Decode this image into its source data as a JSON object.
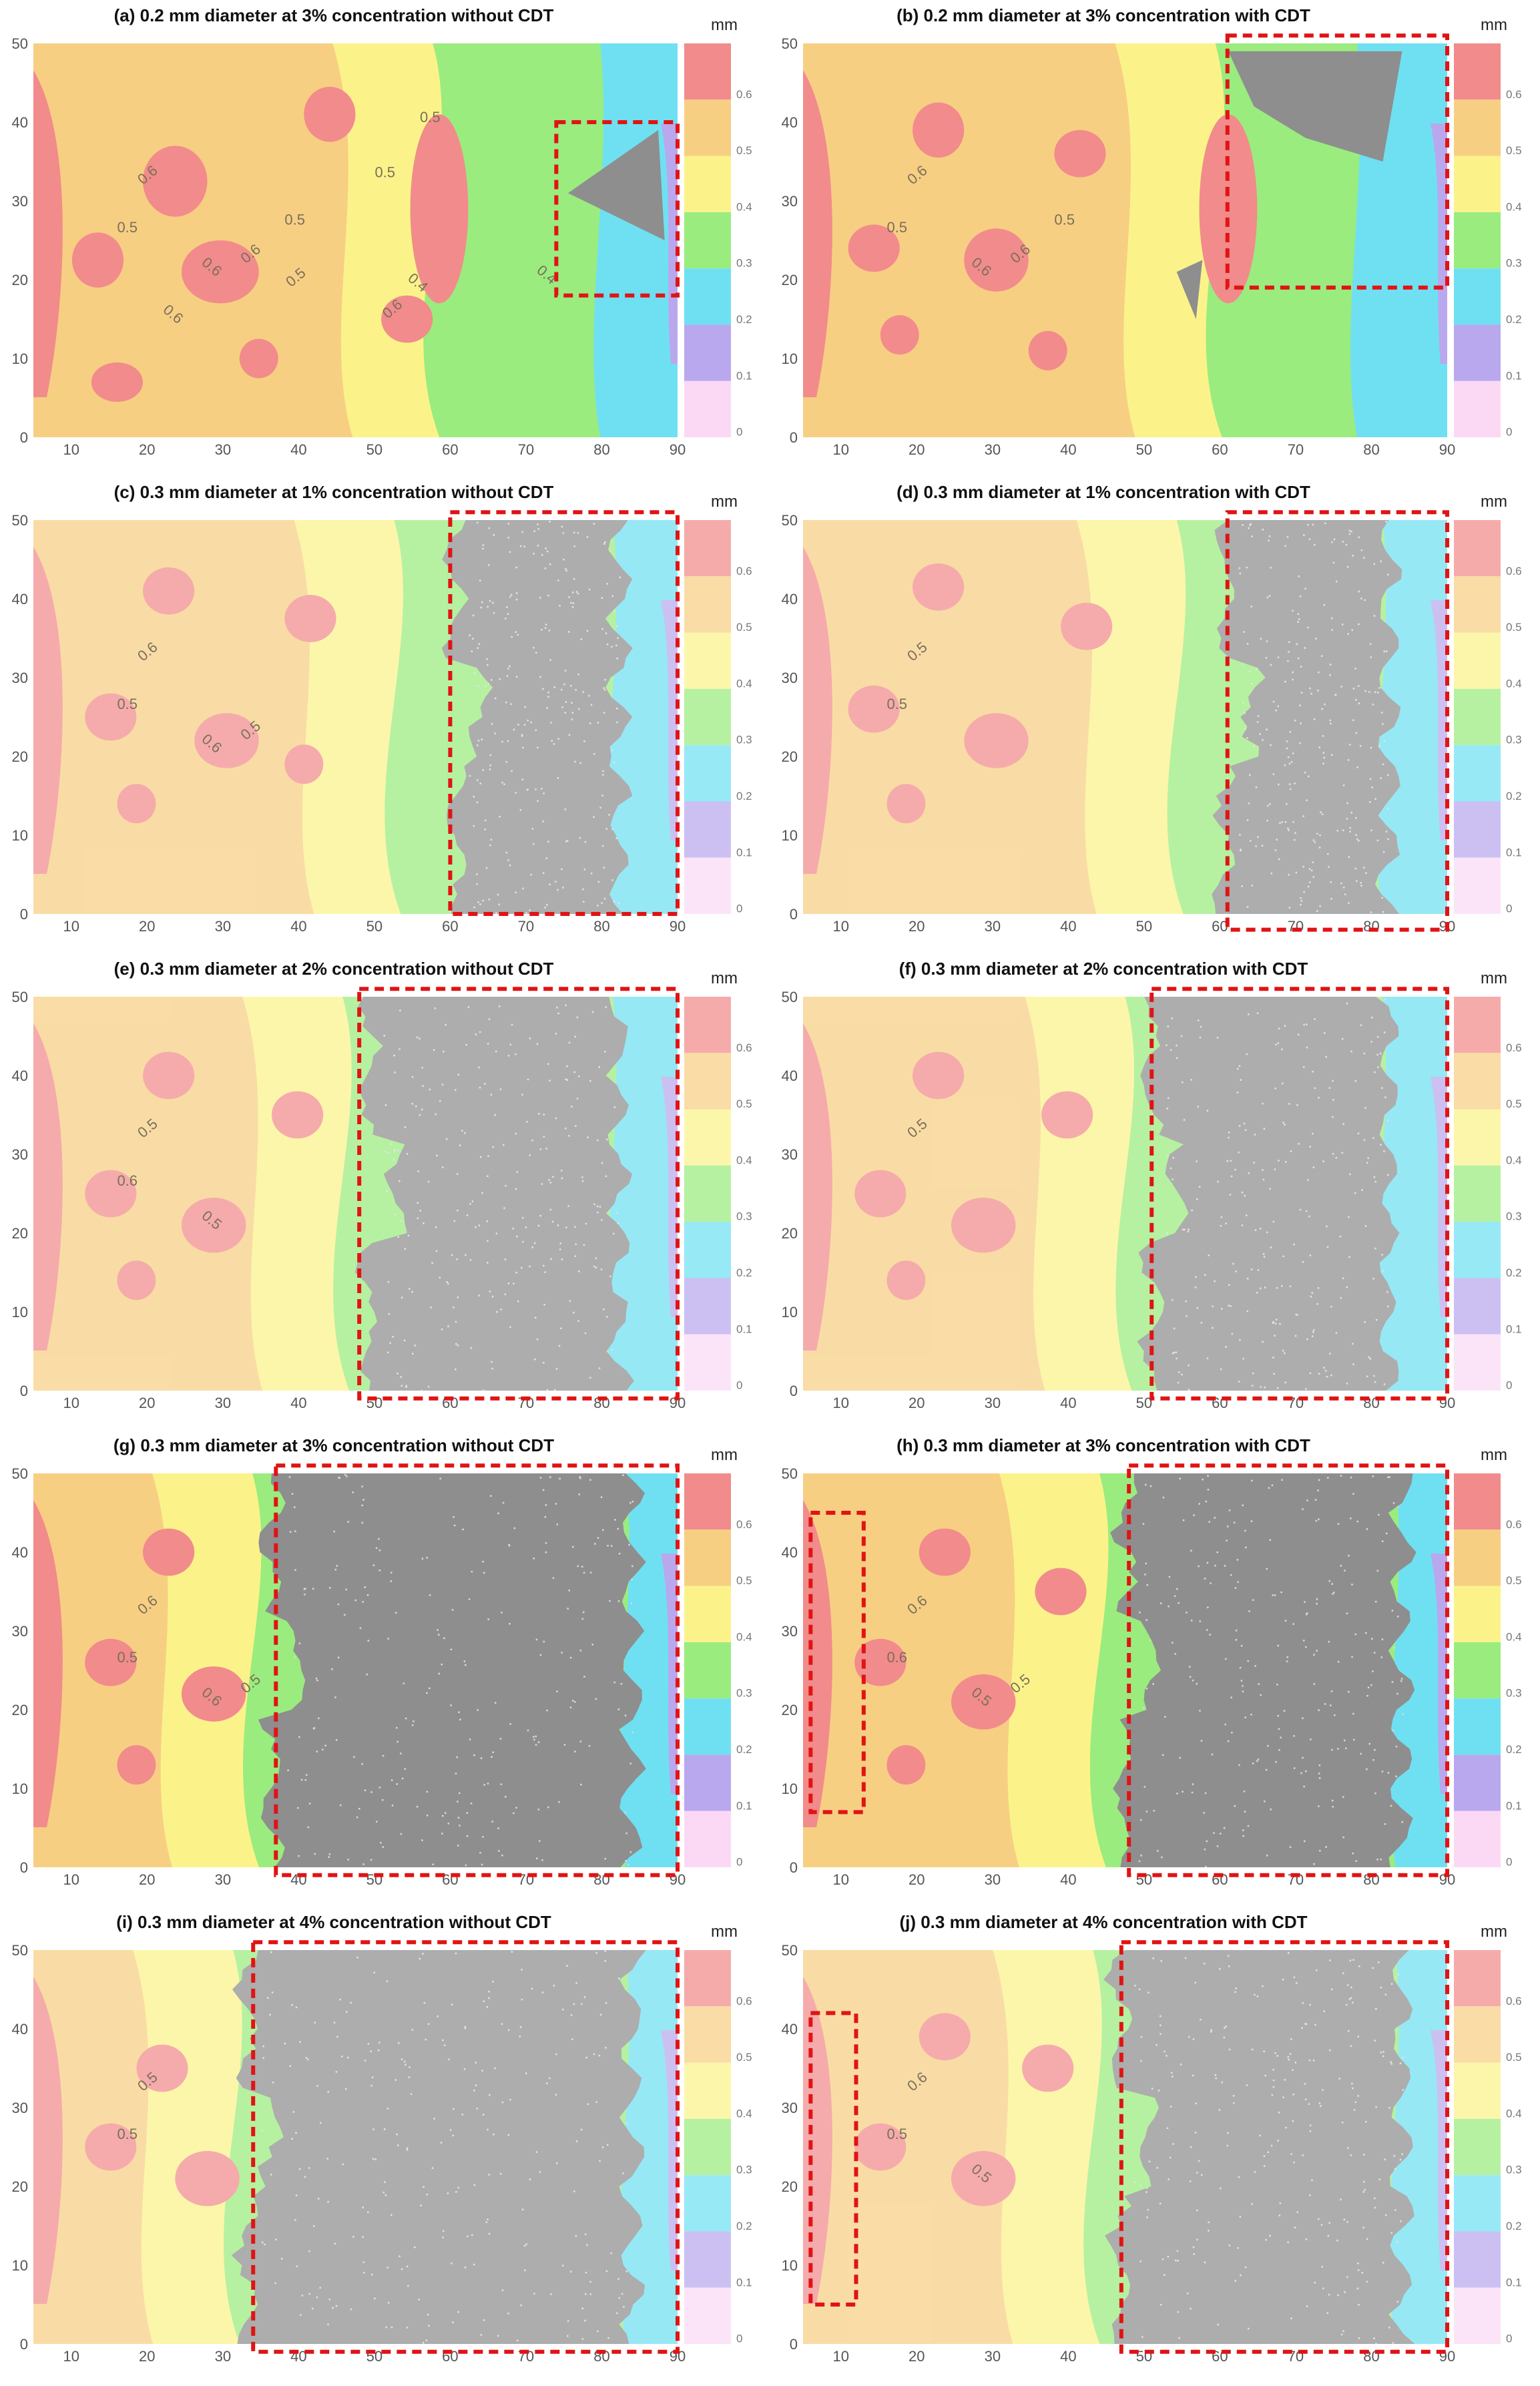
{
  "figure": {
    "unit_label": "mm",
    "legend_ticks": [
      "0.6",
      "0.5",
      "0.4",
      "0.3",
      "0.2",
      "0.1",
      "0"
    ],
    "legend_colors": [
      "#f28b8b",
      "#f7cf83",
      "#fbf38a",
      "#9aec7e",
      "#6fe0f2",
      "#b9a8ee",
      "#fbd9f5"
    ],
    "surface_colors": {
      "high": "#f28b8b",
      "mid_high": "#f7cf83",
      "mid": "#fbf38a",
      "low_mid": "#9aec7e",
      "low": "#6fe0f2",
      "very_low": "#b9a8ee",
      "damage": "#8e8e8e",
      "highlight_box": "#e01414"
    }
  },
  "chart_data": [
    {
      "type": "heatmap",
      "panel": "a",
      "title": "(a) 0.2 mm diameter at 3% concentration without CDT",
      "xticks": [
        10,
        20,
        30,
        40,
        50,
        60,
        70,
        80,
        90
      ],
      "yticks": [
        0,
        10,
        20,
        30,
        40,
        50
      ],
      "xlim": [
        5,
        90
      ],
      "ylim": [
        0,
        50
      ],
      "colorbar_label": "mm",
      "colorbar_range": [
        0,
        0.7
      ],
      "contour_labels": [
        "0.6",
        "0.5",
        "0.6",
        "0.6",
        "0.5",
        "0.6",
        "0.6",
        "0.5",
        "0.4",
        "0.5",
        "0.5",
        "0.4"
      ],
      "highlight_regions": [
        {
          "x": [
            74,
            90
          ],
          "y": [
            18,
            40
          ]
        }
      ]
    },
    {
      "type": "heatmap",
      "panel": "b",
      "title": "(b) 0.2 mm diameter at 3% concentration with CDT",
      "xticks": [
        10,
        20,
        30,
        40,
        50,
        60,
        70,
        80,
        90
      ],
      "yticks": [
        0,
        10,
        20,
        30,
        40,
        50
      ],
      "xlim": [
        5,
        90
      ],
      "ylim": [
        0,
        50
      ],
      "colorbar_label": "mm",
      "colorbar_range": [
        0,
        0.7
      ],
      "contour_labels": [
        "0.6",
        "0.5",
        "0.6",
        "0.6",
        "0.5"
      ],
      "highlight_regions": [
        {
          "x": [
            61,
            90
          ],
          "y": [
            19,
            51
          ]
        }
      ]
    },
    {
      "type": "heatmap",
      "panel": "c",
      "title": "(c) 0.3 mm diameter at 1% concentration without CDT",
      "xticks": [
        10,
        20,
        30,
        40,
        50,
        60,
        70,
        80,
        90
      ],
      "yticks": [
        0,
        10,
        20,
        30,
        40,
        50
      ],
      "xlim": [
        5,
        90
      ],
      "ylim": [
        0,
        50
      ],
      "colorbar_label": "mm",
      "colorbar_range": [
        0,
        0.7
      ],
      "contour_labels": [
        "0.6",
        "0.5",
        "0.6",
        "0.5"
      ],
      "highlight_regions": [
        {
          "x": [
            60,
            90
          ],
          "y": [
            0,
            51
          ]
        }
      ]
    },
    {
      "type": "heatmap",
      "panel": "d",
      "title": "(d) 0.3 mm diameter at 1% concentration with CDT",
      "xticks": [
        10,
        20,
        30,
        40,
        50,
        60,
        70,
        80,
        90
      ],
      "yticks": [
        0,
        10,
        20,
        30,
        40,
        50
      ],
      "xlim": [
        5,
        90
      ],
      "ylim": [
        0,
        50
      ],
      "colorbar_label": "mm",
      "colorbar_range": [
        0,
        0.7
      ],
      "contour_labels": [
        "0.5",
        "0.5"
      ],
      "highlight_regions": [
        {
          "x": [
            61,
            90
          ],
          "y": [
            -2,
            51
          ]
        }
      ]
    },
    {
      "type": "heatmap",
      "panel": "e",
      "title": "(e) 0.3 mm diameter at 2% concentration without CDT",
      "xticks": [
        10,
        20,
        30,
        40,
        50,
        60,
        70,
        80,
        90
      ],
      "yticks": [
        0,
        10,
        20,
        30,
        40,
        50
      ],
      "xlim": [
        5,
        90
      ],
      "ylim": [
        0,
        50
      ],
      "colorbar_label": "mm",
      "colorbar_range": [
        0,
        0.7
      ],
      "contour_labels": [
        "0.5",
        "0.6",
        "0.5"
      ],
      "highlight_regions": [
        {
          "x": [
            48,
            90
          ],
          "y": [
            -1,
            51
          ]
        }
      ]
    },
    {
      "type": "heatmap",
      "panel": "f",
      "title": "(f) 0.3 mm diameter at 2% concentration with CDT",
      "xticks": [
        10,
        20,
        30,
        40,
        50,
        60,
        70,
        80,
        90
      ],
      "yticks": [
        0,
        10,
        20,
        30,
        40,
        50
      ],
      "xlim": [
        5,
        90
      ],
      "ylim": [
        0,
        50
      ],
      "colorbar_label": "mm",
      "colorbar_range": [
        0,
        0.7
      ],
      "contour_labels": [
        "0.5"
      ],
      "highlight_regions": [
        {
          "x": [
            51,
            90
          ],
          "y": [
            -1,
            51
          ]
        }
      ]
    },
    {
      "type": "heatmap",
      "panel": "g",
      "title": "(g) 0.3 mm diameter at 3% concentration without CDT",
      "xticks": [
        10,
        20,
        30,
        40,
        50,
        60,
        70,
        80,
        90
      ],
      "yticks": [
        0,
        10,
        20,
        30,
        40,
        50
      ],
      "xlim": [
        5,
        90
      ],
      "ylim": [
        0,
        50
      ],
      "colorbar_label": "mm",
      "colorbar_range": [
        0,
        0.7
      ],
      "contour_labels": [
        "0.6",
        "0.5",
        "0.6",
        "0.5"
      ],
      "highlight_regions": [
        {
          "x": [
            37,
            90
          ],
          "y": [
            -1,
            51
          ]
        }
      ]
    },
    {
      "type": "heatmap",
      "panel": "h",
      "title": "(h) 0.3 mm diameter at 3% concentration with CDT",
      "xticks": [
        10,
        20,
        30,
        40,
        50,
        60,
        70,
        80,
        90
      ],
      "yticks": [
        0,
        10,
        20,
        30,
        40,
        50
      ],
      "xlim": [
        5,
        90
      ],
      "ylim": [
        0,
        50
      ],
      "colorbar_label": "mm",
      "colorbar_range": [
        0,
        0.7
      ],
      "contour_labels": [
        "0.6",
        "0.6",
        "0.5",
        "0.5"
      ],
      "highlight_regions": [
        {
          "x": [
            6,
            13
          ],
          "y": [
            7,
            45
          ]
        },
        {
          "x": [
            48,
            90
          ],
          "y": [
            -1,
            51
          ]
        }
      ]
    },
    {
      "type": "heatmap",
      "panel": "i",
      "title": "(i) 0.3 mm diameter at 4% concentration without CDT",
      "xticks": [
        10,
        20,
        30,
        40,
        50,
        60,
        70,
        80,
        90
      ],
      "yticks": [
        0,
        10,
        20,
        30,
        40,
        50
      ],
      "xlim": [
        5,
        90
      ],
      "ylim": [
        0,
        50
      ],
      "colorbar_label": "mm",
      "colorbar_range": [
        0,
        0.7
      ],
      "contour_labels": [
        "0.5",
        "0.5"
      ],
      "highlight_regions": [
        {
          "x": [
            34,
            90
          ],
          "y": [
            -1,
            51
          ]
        }
      ]
    },
    {
      "type": "heatmap",
      "panel": "j",
      "title": "(j) 0.3 mm diameter at 4% concentration with CDT",
      "xticks": [
        10,
        20,
        30,
        40,
        50,
        60,
        70,
        80,
        90
      ],
      "yticks": [
        0,
        10,
        20,
        30,
        40,
        50
      ],
      "xlim": [
        5,
        90
      ],
      "ylim": [
        0,
        50
      ],
      "colorbar_label": "mm",
      "colorbar_range": [
        0,
        0.7
      ],
      "contour_labels": [
        "0.6",
        "0.5",
        "0.5"
      ],
      "highlight_regions": [
        {
          "x": [
            6,
            12
          ],
          "y": [
            5,
            42
          ]
        },
        {
          "x": [
            47,
            90
          ],
          "y": [
            -1,
            51
          ]
        }
      ]
    }
  ]
}
